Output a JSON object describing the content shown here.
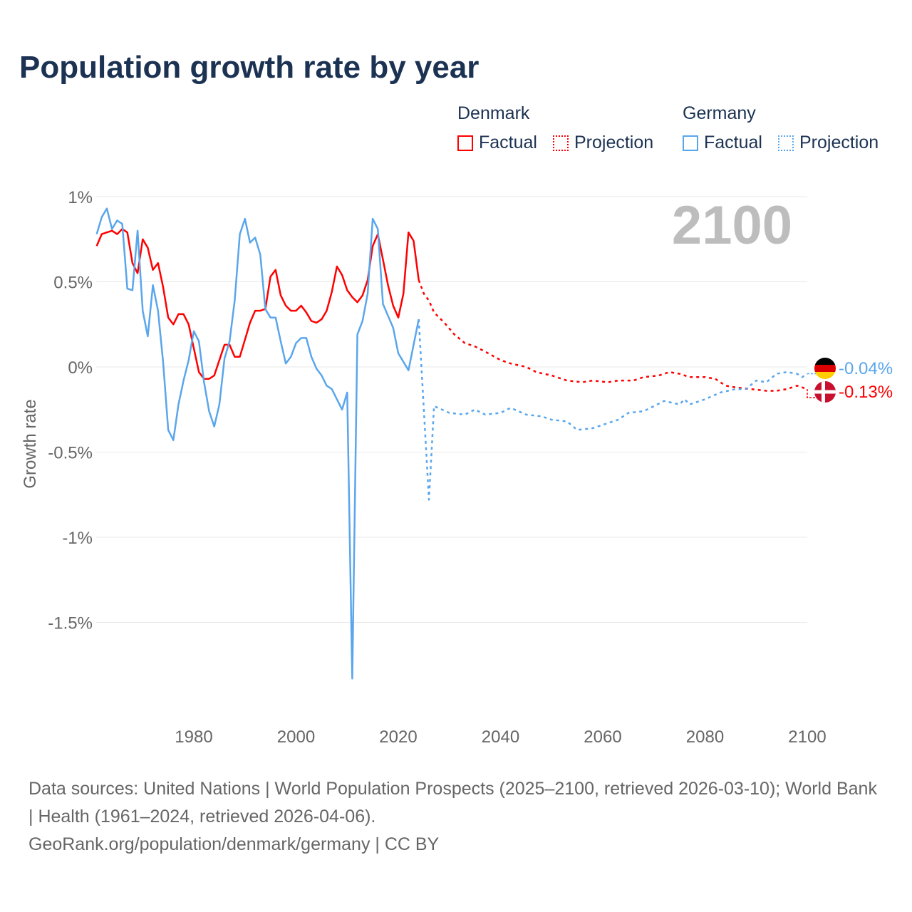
{
  "title": "Population growth rate by year",
  "legend": {
    "groups": [
      {
        "name": "Denmark",
        "color": "#ff0000",
        "factual": "Factual",
        "projection": "Projection"
      },
      {
        "name": "Germany",
        "color": "#5aa6ec",
        "factual": "Factual",
        "projection": "Projection"
      }
    ]
  },
  "year_label": "2100",
  "end_labels": {
    "germany": "-0.04%",
    "denmark": "-0.13%"
  },
  "footer": {
    "sources": "Data sources: United Nations | World Population Prospects (2025–2100, retrieved 2026-03-10); World Bank | Health (1961–2024, retrieved 2026-04-06).",
    "link": "GeoRank.org/population/denmark/germany | CC BY"
  },
  "chart_data": {
    "type": "line",
    "title": "Population growth rate by year",
    "xlabel": "",
    "ylabel": "Growth rate",
    "xlim": [
      1961,
      2100
    ],
    "ylim": [
      -2,
      1.1
    ],
    "xticks": [
      1980,
      2000,
      2020,
      2040,
      2060,
      2080,
      2100
    ],
    "xtick_labels": [
      "1980",
      "2000",
      "2020",
      "2040",
      "2060",
      "2080",
      "2100"
    ],
    "yticks": [
      1,
      0.5,
      0,
      -0.5,
      -1,
      -1.5
    ],
    "ytick_labels": [
      "1%",
      "0.5%",
      "0%",
      "-0.5%",
      "-1%",
      "-1.5%"
    ],
    "grid": true,
    "series": [
      {
        "name": "Denmark Factual",
        "color": "#ff0000",
        "dashed": false,
        "x_start": 1961,
        "values": [
          0.71,
          0.78,
          0.79,
          0.8,
          0.78,
          0.81,
          0.79,
          0.61,
          0.55,
          0.75,
          0.7,
          0.57,
          0.61,
          0.47,
          0.29,
          0.25,
          0.31,
          0.31,
          0.25,
          0.11,
          -0.03,
          -0.07,
          -0.07,
          -0.05,
          0.04,
          0.13,
          0.13,
          0.06,
          0.06,
          0.16,
          0.26,
          0.33,
          0.33,
          0.34,
          0.53,
          0.57,
          0.42,
          0.36,
          0.33,
          0.33,
          0.36,
          0.32,
          0.27,
          0.26,
          0.28,
          0.33,
          0.44,
          0.59,
          0.54,
          0.45,
          0.41,
          0.38,
          0.42,
          0.51,
          0.71,
          0.78,
          0.63,
          0.48,
          0.36,
          0.29,
          0.43,
          0.79,
          0.74,
          0.51
        ]
      },
      {
        "name": "Germany Factual",
        "color": "#5aa6ec",
        "dashed": false,
        "x_start": 1961,
        "values": [
          0.78,
          0.88,
          0.93,
          0.81,
          0.86,
          0.84,
          0.46,
          0.45,
          0.8,
          0.33,
          0.18,
          0.48,
          0.33,
          0.03,
          -0.37,
          -0.43,
          -0.22,
          -0.08,
          0.04,
          0.21,
          0.15,
          -0.09,
          -0.26,
          -0.35,
          -0.22,
          0.05,
          0.15,
          0.39,
          0.78,
          0.87,
          0.73,
          0.76,
          0.66,
          0.34,
          0.29,
          0.29,
          0.15,
          0.02,
          0.06,
          0.14,
          0.17,
          0.17,
          0.06,
          -0.01,
          -0.05,
          -0.11,
          -0.13,
          -0.19,
          -0.25,
          -0.15,
          -1.83,
          0.19,
          0.27,
          0.43,
          0.87,
          0.81,
          0.37,
          0.3,
          0.23,
          0.08,
          0.03,
          -0.02,
          0.13,
          0.28
        ]
      },
      {
        "name": "Denmark Projection",
        "color": "#ff0000",
        "dashed": true,
        "points": [
          [
            2024,
            0.51
          ],
          [
            2025,
            0.43
          ],
          [
            2026,
            0.39
          ],
          [
            2027,
            0.32
          ],
          [
            2029,
            0.26
          ],
          [
            2031,
            0.19
          ],
          [
            2033,
            0.14
          ],
          [
            2035,
            0.12
          ],
          [
            2037,
            0.09
          ],
          [
            2040,
            0.04
          ],
          [
            2042,
            0.02
          ],
          [
            2045,
            0.0
          ],
          [
            2047,
            -0.03
          ],
          [
            2050,
            -0.05
          ],
          [
            2053,
            -0.08
          ],
          [
            2056,
            -0.09
          ],
          [
            2058,
            -0.08
          ],
          [
            2061,
            -0.09
          ],
          [
            2063,
            -0.08
          ],
          [
            2066,
            -0.08
          ],
          [
            2068,
            -0.06
          ],
          [
            2071,
            -0.05
          ],
          [
            2073,
            -0.03
          ],
          [
            2075,
            -0.04
          ],
          [
            2077,
            -0.06
          ],
          [
            2080,
            -0.06
          ],
          [
            2082,
            -0.07
          ],
          [
            2084,
            -0.11
          ],
          [
            2086,
            -0.12
          ],
          [
            2089,
            -0.13
          ],
          [
            2092,
            -0.14
          ],
          [
            2094,
            -0.14
          ],
          [
            2096,
            -0.13
          ],
          [
            2098,
            -0.11
          ],
          [
            2099,
            -0.12
          ],
          [
            2100,
            -0.13
          ]
        ]
      },
      {
        "name": "Germany Projection",
        "color": "#5aa6ec",
        "dashed": true,
        "points": [
          [
            2024,
            0.28
          ],
          [
            2026,
            -0.78
          ],
          [
            2027,
            -0.23
          ],
          [
            2030,
            -0.27
          ],
          [
            2033,
            -0.28
          ],
          [
            2035,
            -0.25
          ],
          [
            2037,
            -0.28
          ],
          [
            2040,
            -0.27
          ],
          [
            2042,
            -0.24
          ],
          [
            2045,
            -0.28
          ],
          [
            2048,
            -0.29
          ],
          [
            2050,
            -0.31
          ],
          [
            2053,
            -0.32
          ],
          [
            2055,
            -0.37
          ],
          [
            2058,
            -0.36
          ],
          [
            2060,
            -0.34
          ],
          [
            2063,
            -0.31
          ],
          [
            2065,
            -0.27
          ],
          [
            2068,
            -0.26
          ],
          [
            2070,
            -0.23
          ],
          [
            2072,
            -0.2
          ],
          [
            2075,
            -0.22
          ],
          [
            2076,
            -0.19
          ],
          [
            2077,
            -0.22
          ],
          [
            2080,
            -0.19
          ],
          [
            2083,
            -0.15
          ],
          [
            2086,
            -0.13
          ],
          [
            2088,
            -0.13
          ],
          [
            2090,
            -0.08
          ],
          [
            2092,
            -0.09
          ],
          [
            2094,
            -0.04
          ],
          [
            2096,
            -0.03
          ],
          [
            2098,
            -0.04
          ],
          [
            2099,
            -0.06
          ],
          [
            2100,
            -0.04
          ]
        ]
      }
    ]
  }
}
